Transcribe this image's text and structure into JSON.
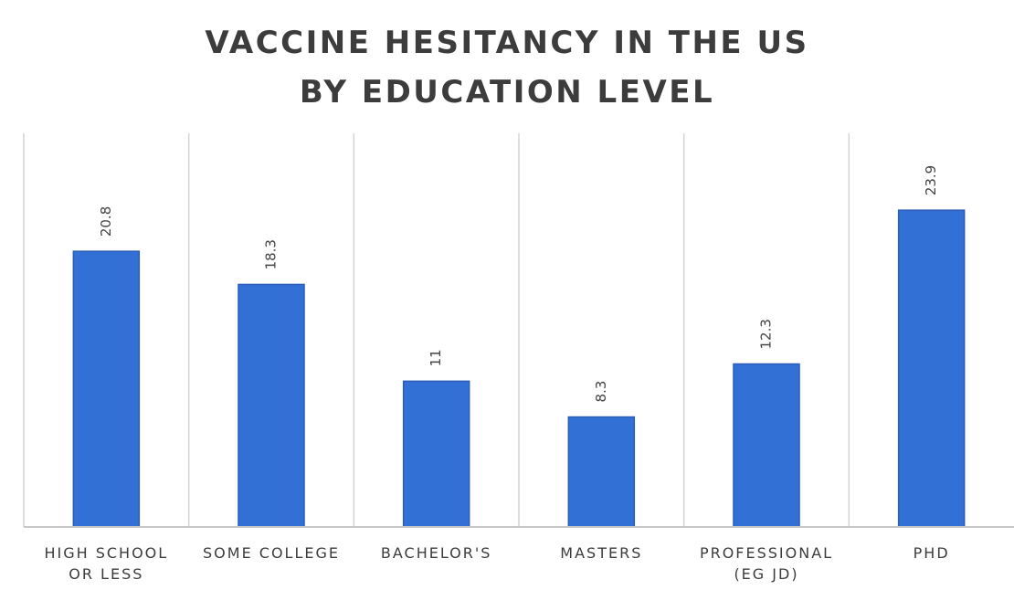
{
  "chart_data": {
    "type": "bar",
    "title_lines": [
      "VACCINE HESITANCY IN THE US",
      "BY EDUCATION LEVEL"
    ],
    "categories": [
      [
        "HIGH SCHOOL",
        "OR LESS"
      ],
      [
        "SOME COLLEGE"
      ],
      [
        "BACHELOR'S"
      ],
      [
        "MASTERS"
      ],
      [
        "PROFESSIONAL",
        "(EG JD)"
      ],
      [
        "PHD"
      ]
    ],
    "values": [
      20.8,
      18.3,
      11,
      8.3,
      12.3,
      23.9
    ],
    "value_labels": [
      "20.8",
      "18.3",
      "11",
      "8.3",
      "12.3",
      "23.9"
    ],
    "ylim": [
      0,
      29.7
    ],
    "grid": false,
    "legend": "none",
    "colors": {
      "bar": "#3370d6",
      "bar_border": "#2a5db8",
      "divider": "#d4d4d4",
      "text": "#3c3c3c"
    }
  }
}
